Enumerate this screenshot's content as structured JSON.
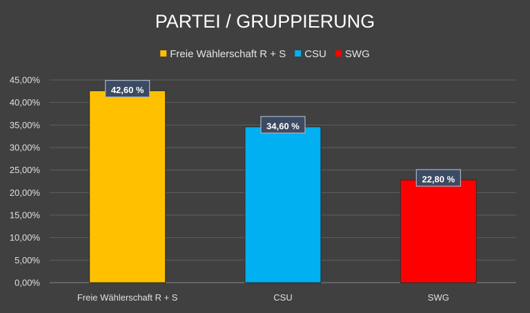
{
  "chart_data": {
    "type": "bar",
    "title": "PARTEI / GRUPPIERUNG",
    "categories": [
      "Freie Wählerschaft R + S",
      "CSU",
      "SWG"
    ],
    "values": [
      42.6,
      34.6,
      22.8
    ],
    "value_labels": [
      "42,60 %",
      "34,60 %",
      "22,80 %"
    ],
    "colors": [
      "#FFC000",
      "#00B0F0",
      "#FF0000"
    ],
    "legend": [
      "Freie Wählerschaft R + S",
      "CSU",
      "SWG"
    ],
    "legend_position": "top",
    "ylim": [
      0,
      45
    ],
    "yticks": [
      0,
      5,
      10,
      15,
      20,
      25,
      30,
      35,
      40,
      45
    ],
    "ytick_labels": [
      "0,00%",
      "5,00%",
      "10,00%",
      "15,00%",
      "20,00%",
      "25,00%",
      "30,00%",
      "35,00%",
      "40,00%",
      "45,00%"
    ],
    "grid": true,
    "xlabel": "",
    "ylabel": ""
  }
}
